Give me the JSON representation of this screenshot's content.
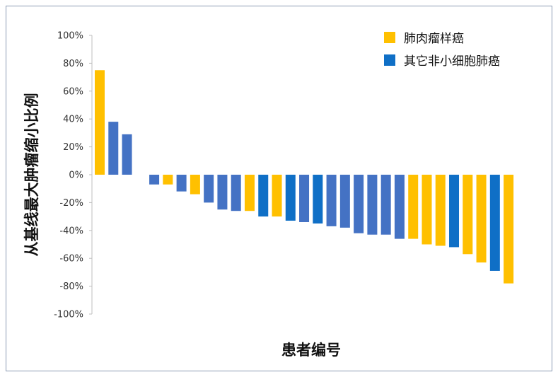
{
  "chart_data": {
    "type": "bar",
    "title": "",
    "xlabel": "患者编号",
    "ylabel": "从基线最大肿瘤缩小比例",
    "ylim": [
      -100,
      100
    ],
    "yticks": [
      100,
      80,
      60,
      40,
      20,
      0,
      -20,
      -40,
      -60,
      -80,
      -100
    ],
    "ytick_labels": [
      "100%",
      "80%",
      "60%",
      "40%",
      "20%",
      "0%",
      "-20%",
      "-40%",
      "-60%",
      "-80%",
      "-100%"
    ],
    "grid": false,
    "legend_position": "top-right",
    "legend": [
      {
        "label": "肺肉瘤样癌",
        "color": "#FFC000"
      },
      {
        "label": "其它非小细胞肺癌",
        "color": "#0F6FC6"
      }
    ],
    "colors": {
      "sarcomatoid": "#FFC000",
      "other_medium": "#4472C4",
      "other_dark": "#0F6FC6"
    },
    "bars": [
      {
        "value": 75,
        "color_key": "sarcomatoid"
      },
      {
        "value": 38,
        "color_key": "other_medium"
      },
      {
        "value": 29,
        "color_key": "other_medium"
      },
      {
        "value": null,
        "color_key": "other_medium"
      },
      {
        "value": -7,
        "color_key": "other_medium"
      },
      {
        "value": -7,
        "color_key": "sarcomatoid"
      },
      {
        "value": -12,
        "color_key": "other_medium"
      },
      {
        "value": -14,
        "color_key": "sarcomatoid"
      },
      {
        "value": -20,
        "color_key": "other_medium"
      },
      {
        "value": -25,
        "color_key": "other_medium"
      },
      {
        "value": -26,
        "color_key": "other_medium"
      },
      {
        "value": -26,
        "color_key": "sarcomatoid"
      },
      {
        "value": -30,
        "color_key": "other_dark"
      },
      {
        "value": -30,
        "color_key": "sarcomatoid"
      },
      {
        "value": -33,
        "color_key": "other_dark"
      },
      {
        "value": -34,
        "color_key": "other_medium"
      },
      {
        "value": -35,
        "color_key": "other_dark"
      },
      {
        "value": -37,
        "color_key": "other_medium"
      },
      {
        "value": -38,
        "color_key": "other_medium"
      },
      {
        "value": -42,
        "color_key": "other_medium"
      },
      {
        "value": -43,
        "color_key": "other_medium"
      },
      {
        "value": -43,
        "color_key": "other_medium"
      },
      {
        "value": -46,
        "color_key": "other_medium"
      },
      {
        "value": -46,
        "color_key": "sarcomatoid"
      },
      {
        "value": -50,
        "color_key": "sarcomatoid"
      },
      {
        "value": -51,
        "color_key": "sarcomatoid"
      },
      {
        "value": -52,
        "color_key": "other_dark"
      },
      {
        "value": -57,
        "color_key": "sarcomatoid"
      },
      {
        "value": -63,
        "color_key": "sarcomatoid"
      },
      {
        "value": -69,
        "color_key": "other_dark"
      },
      {
        "value": -78,
        "color_key": "sarcomatoid"
      }
    ]
  }
}
